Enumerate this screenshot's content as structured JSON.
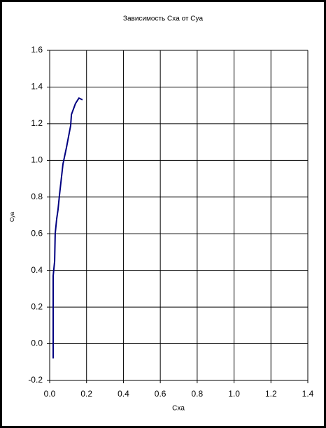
{
  "chart_data": {
    "type": "line",
    "title": "Зависимость Cxa от Cya",
    "x_label": "Cxa",
    "y_label": "Cya",
    "series": [
      {
        "name": "Cya",
        "color": "#000080",
        "x": [
          0.019,
          0.019,
          0.027,
          0.03,
          0.038,
          0.045,
          0.053,
          0.072,
          0.091,
          0.114,
          0.118,
          0.14,
          0.159,
          0.178
        ],
        "values": [
          -0.08,
          0.37,
          0.45,
          0.6,
          0.68,
          0.73,
          0.81,
          0.98,
          1.07,
          1.19,
          1.25,
          1.31,
          1.34,
          1.33
        ]
      }
    ],
    "xlim": [
      0,
      1.4
    ],
    "xticks": [
      {
        "value": 0,
        "label": "0.0"
      },
      0.2,
      0.4,
      0.6,
      0.8,
      {
        "value": 1,
        "label": "1.0"
      },
      1.2,
      1.4
    ],
    "ylim": [
      -0.2,
      1.6
    ],
    "yticks": [
      -0.2,
      {
        "value": 0,
        "label": "0.0"
      },
      0.2,
      0.4,
      0.6,
      0.8,
      {
        "value": 1,
        "label": "1.0"
      },
      1.2,
      1.4,
      1.6
    ],
    "grid": true
  }
}
